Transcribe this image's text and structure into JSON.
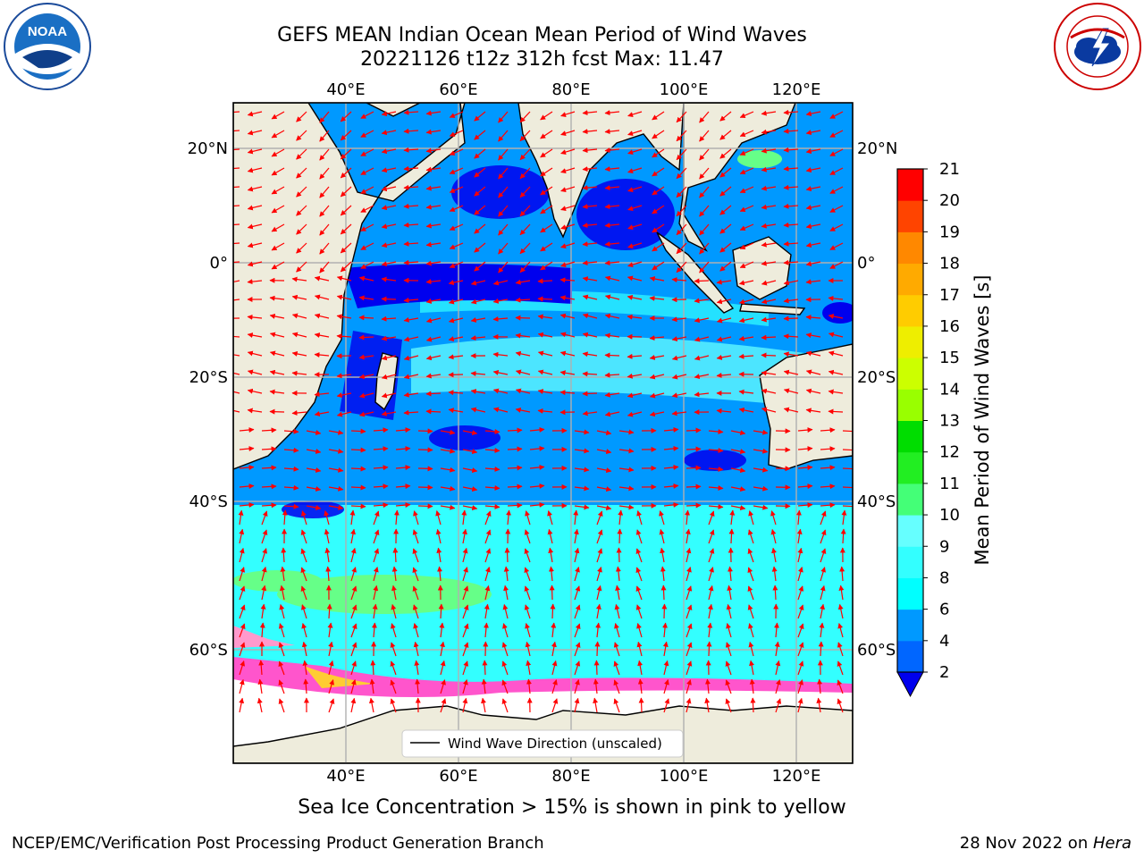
{
  "header": {
    "title_line1": "GEFS MEAN Indian Ocean Mean Period of Wind Waves",
    "title_line2": "20221126 t12z 312h fcst   Max: 11.47"
  },
  "logos": {
    "left": {
      "icon": "noaa-logo",
      "text": "NOAA",
      "ring_text": "NATIONAL OCEANIC AND ATMOSPHERIC ADMINISTRATION · U.S. DEPARTMENT OF COMMERCE"
    },
    "right": {
      "icon": "nws-logo",
      "ring_text": "NATIONAL WEATHER SERVICE"
    }
  },
  "map": {
    "lon_labels": [
      "40°E",
      "60°E",
      "80°E",
      "100°E",
      "120°E"
    ],
    "lat_labels": [
      "20°N",
      "0°",
      "20°S",
      "40°S",
      "60°S"
    ],
    "legend_label": "Wind Wave Direction (unscaled)",
    "colors": {
      "land": "#eeecdc",
      "ice": "#ffffff",
      "arrow": "#ff0000"
    }
  },
  "colorbar": {
    "label": "Mean Period of Wind Waves [s]",
    "ticks": [
      "2",
      "4",
      "6",
      "8",
      "9",
      "10",
      "11",
      "12",
      "13",
      "14",
      "15",
      "16",
      "17",
      "18",
      "19",
      "20",
      "21"
    ],
    "colors": [
      "#0000ee",
      "#0066ff",
      "#0099ff",
      "#00ccff",
      "#00ffff",
      "#33ffff",
      "#66ffff",
      "#99ffff",
      "#44ff77",
      "#22ee22",
      "#00dd00",
      "#55ee00",
      "#99ff00",
      "#ccff00",
      "#eeee00",
      "#ffee00",
      "#ffcc00",
      "#ffaa00",
      "#ff8800",
      "#ff6600",
      "#ff4400",
      "#ff0000"
    ]
  },
  "subtitle": "Sea Ice Concentration > 15% is shown in pink to yellow",
  "footer": {
    "left": "NCEP/EMC/Verification Post Processing Product Generation Branch",
    "right_date": "28 Nov 2022 on ",
    "right_host": "Hera"
  }
}
